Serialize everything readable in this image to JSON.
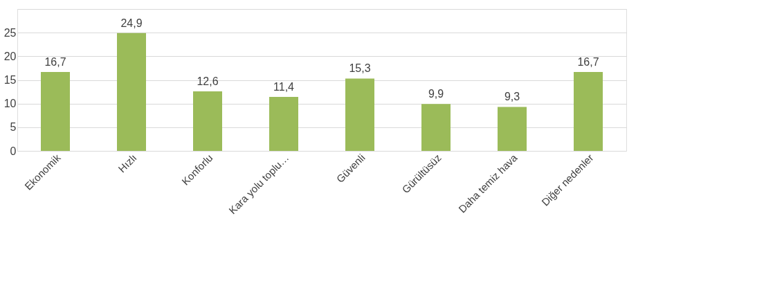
{
  "chart_data": {
    "type": "bar",
    "categories": [
      "Ekonomik",
      "Hızlı",
      "Konforlu",
      "Kara yolu toplu…",
      "Güvenli",
      "Gürültüsüz",
      "Daha temiz hava",
      "Diğer nedenler"
    ],
    "values": [
      16.7,
      24.9,
      12.6,
      11.4,
      15.3,
      9.9,
      9.3,
      16.7
    ],
    "color": "#9bbb59",
    "ylim": [
      0,
      30
    ],
    "yticks": [
      0,
      5,
      10,
      15,
      20,
      25,
      {
        "value": 30,
        "label": null
      }
    ],
    "grid": "y",
    "data_labels": true,
    "value_labels": [
      "16,7",
      "24,9",
      "12,6",
      "11,4",
      "15,3",
      "9,9",
      "9,3",
      "16,7"
    ]
  }
}
